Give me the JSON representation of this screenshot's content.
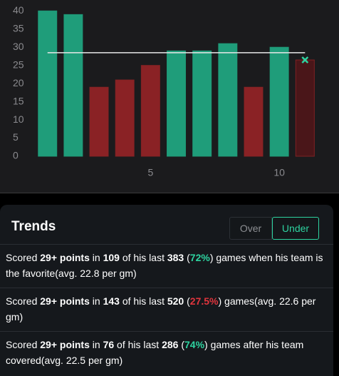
{
  "chart_data": {
    "type": "bar",
    "values": [
      40,
      39,
      19,
      21,
      25,
      29,
      29,
      31,
      19,
      30,
      26.5
    ],
    "colors": [
      "#1f9d7a",
      "#1f9d7a",
      "#8a2225",
      "#8a2225",
      "#8a2225",
      "#1f9d7a",
      "#1f9d7a",
      "#1f9d7a",
      "#8a2225",
      "#1f9d7a",
      "#4a1619"
    ],
    "x": [
      1,
      2,
      3,
      4,
      5,
      6,
      7,
      8,
      9,
      10,
      11
    ],
    "xlim": [
      0.15,
      11.6
    ],
    "xticks": [
      5,
      10
    ],
    "ylim": [
      0,
      43
    ],
    "yticks": [
      0,
      5,
      10,
      15,
      20,
      25,
      30,
      35,
      40
    ],
    "line_value": 28.5,
    "grid": false
  },
  "trends": {
    "title": "Trends",
    "tabs": [
      "Over",
      "Under"
    ],
    "active_tab": 1,
    "items": [
      [
        {
          "text": "Scored "
        },
        {
          "text": "29+ points",
          "style": "bold"
        },
        {
          "text": " in "
        },
        {
          "text": "109",
          "style": "bold"
        },
        {
          "text": " of his last "
        },
        {
          "text": "383",
          "style": "bold"
        },
        {
          "text": " ("
        },
        {
          "text": "72%",
          "style": "green"
        },
        {
          "text": ") games when his team is the favorite(avg. 22.8 per gm)"
        }
      ],
      [
        {
          "text": "Scored "
        },
        {
          "text": "29+ points",
          "style": "bold"
        },
        {
          "text": " in "
        },
        {
          "text": "143",
          "style": "bold"
        },
        {
          "text": " of his last "
        },
        {
          "text": "520",
          "style": "bold"
        },
        {
          "text": " ("
        },
        {
          "text": "27.5%",
          "style": "red"
        },
        {
          "text": ") games(avg. 22.6 per gm)"
        }
      ],
      [
        {
          "text": "Scored "
        },
        {
          "text": "29+ points",
          "style": "bold"
        },
        {
          "text": " in "
        },
        {
          "text": "76",
          "style": "bold"
        },
        {
          "text": " of his last "
        },
        {
          "text": "286",
          "style": "bold"
        },
        {
          "text": " ("
        },
        {
          "text": "74%",
          "style": "green"
        },
        {
          "text": ") games after his team covered(avg. 22.5 per gm)"
        }
      ]
    ]
  }
}
